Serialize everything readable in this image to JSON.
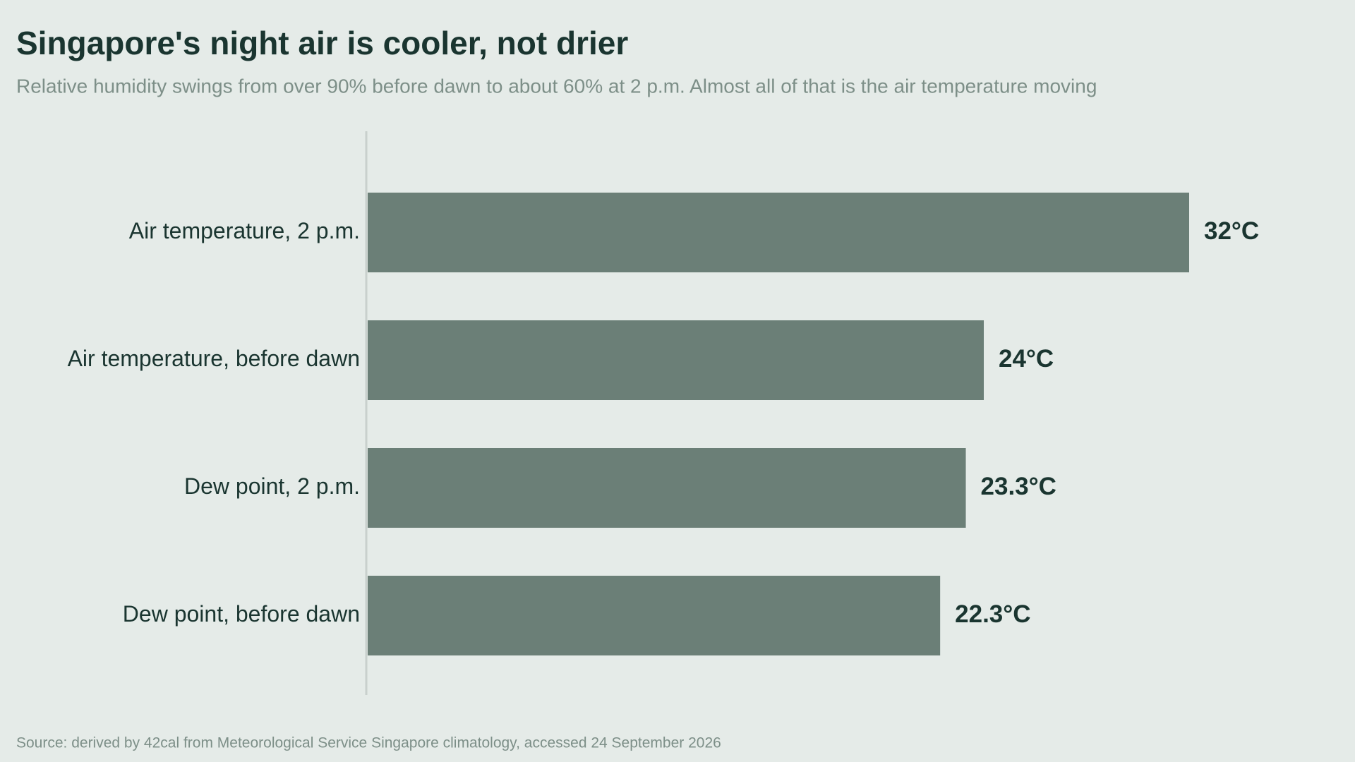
{
  "chart_data": {
    "type": "bar",
    "title": "Singapore's night air is cooler, not drier",
    "subtitle": "Relative humidity swings from over 90% before dawn to about 60% at 2 p.m. Almost all of that is the air temperature moving",
    "source": "Source: derived by 42cal from Meteorological Service Singapore climatology, accessed 24 September 2026",
    "categories": [
      "Air temperature, 2 p.m.",
      "Air temperature, before dawn",
      "Dew point, 2 p.m.",
      "Dew point, before dawn"
    ],
    "values": [
      32,
      24,
      23.3,
      22.3
    ],
    "value_labels": [
      "32°C",
      "24°C",
      "23.3°C",
      "22.3°C"
    ],
    "color": "#6b7f77",
    "xlim": [
      0,
      32
    ]
  }
}
